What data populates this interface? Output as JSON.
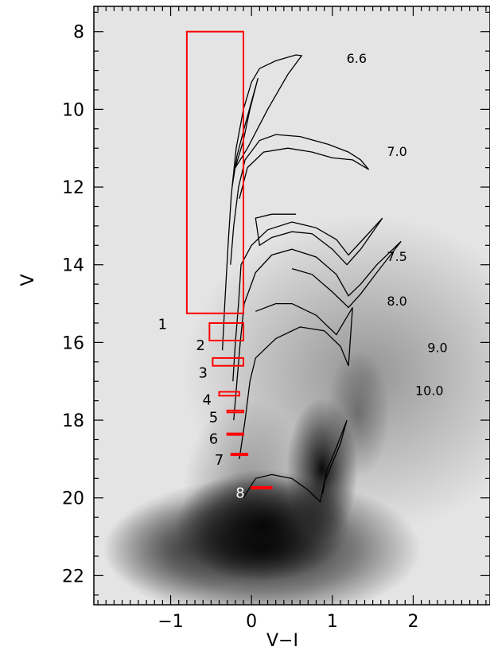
{
  "chart_data": {
    "type": "scatter",
    "xlabel": "V−I",
    "ylabel": "V",
    "xlim": [
      -1.95,
      2.95
    ],
    "ylim": [
      22.75,
      7.35
    ],
    "y_inverted": true,
    "xticks": [
      -1,
      0,
      1,
      2
    ],
    "xtick_labels": [
      "−1",
      "0",
      "1",
      "2"
    ],
    "yticks": [
      8,
      10,
      12,
      14,
      16,
      18,
      20,
      22
    ],
    "ytick_labels": [
      "8",
      "10",
      "12",
      "14",
      "16",
      "18",
      "20",
      "22"
    ],
    "background": "grayscale Hess density of stars",
    "colors": {
      "boxes": "#ff0000",
      "isochrones": "#000000"
    },
    "isochrones": [
      {
        "label": "6.6",
        "label_pos": [
          1.3,
          8.8
        ],
        "points": [
          [
            -0.36,
            16.2
          ],
          [
            -0.33,
            15.0
          ],
          [
            -0.29,
            13.5
          ],
          [
            -0.25,
            12.2
          ],
          [
            -0.19,
            11.0
          ],
          [
            -0.1,
            10.0
          ],
          [
            0.0,
            9.3
          ],
          [
            0.1,
            8.95
          ],
          [
            0.3,
            8.75
          ],
          [
            0.55,
            8.6
          ],
          [
            0.62,
            8.62
          ],
          [
            0.45,
            9.1
          ],
          [
            0.2,
            10.0
          ],
          [
            -0.05,
            11.0
          ],
          [
            -0.2,
            11.5
          ],
          [
            -0.1,
            10.8
          ],
          [
            -0.02,
            10.0
          ],
          [
            0.08,
            9.2
          ],
          [
            -0.08,
            10.4
          ],
          [
            -0.18,
            11.2
          ],
          [
            -0.24,
            12.0
          ]
        ]
      },
      {
        "label": "7.0",
        "label_pos": [
          1.8,
          11.2
        ],
        "points": [
          [
            -0.26,
            14.0
          ],
          [
            -0.22,
            13.0
          ],
          [
            -0.16,
            12.0
          ],
          [
            -0.08,
            11.3
          ],
          [
            0.1,
            10.8
          ],
          [
            0.3,
            10.65
          ],
          [
            0.6,
            10.7
          ],
          [
            0.95,
            10.9
          ],
          [
            1.2,
            11.1
          ],
          [
            1.35,
            11.3
          ],
          [
            1.45,
            11.55
          ],
          [
            1.25,
            11.3
          ],
          [
            1.0,
            11.25
          ],
          [
            0.75,
            11.1
          ],
          [
            0.45,
            11.0
          ],
          [
            0.15,
            11.1
          ],
          [
            -0.05,
            11.5
          ],
          [
            -0.15,
            12.3
          ]
        ]
      },
      {
        "label": "7.5",
        "label_pos": [
          1.8,
          13.9
        ],
        "points": [
          [
            -0.23,
            17.0
          ],
          [
            -0.2,
            16.0
          ],
          [
            -0.16,
            15.0
          ],
          [
            -0.13,
            14.0
          ],
          [
            0.0,
            13.5
          ],
          [
            0.2,
            13.1
          ],
          [
            0.5,
            12.9
          ],
          [
            0.8,
            13.05
          ],
          [
            1.05,
            13.35
          ],
          [
            1.2,
            13.75
          ],
          [
            1.4,
            13.3
          ],
          [
            1.62,
            12.8
          ],
          [
            1.35,
            13.6
          ],
          [
            1.18,
            14.0
          ],
          [
            1.0,
            13.6
          ],
          [
            0.75,
            13.2
          ],
          [
            0.5,
            13.15
          ],
          [
            0.25,
            13.3
          ],
          [
            0.1,
            13.5
          ],
          [
            0.05,
            12.8
          ],
          [
            0.25,
            12.7
          ],
          [
            0.55,
            12.7
          ]
        ]
      },
      {
        "label": "8.0",
        "label_pos": [
          1.8,
          15.05
        ],
        "points": [
          [
            -0.22,
            18.0
          ],
          [
            -0.18,
            17.0
          ],
          [
            -0.14,
            16.0
          ],
          [
            -0.09,
            15.0
          ],
          [
            0.05,
            14.2
          ],
          [
            0.25,
            13.75
          ],
          [
            0.5,
            13.6
          ],
          [
            0.8,
            13.8
          ],
          [
            1.05,
            14.25
          ],
          [
            1.2,
            14.8
          ],
          [
            1.35,
            14.5
          ],
          [
            1.55,
            14.0
          ],
          [
            1.85,
            13.4
          ],
          [
            1.55,
            14.2
          ],
          [
            1.35,
            14.75
          ],
          [
            1.2,
            15.1
          ],
          [
            1.0,
            14.7
          ],
          [
            0.75,
            14.25
          ],
          [
            0.5,
            14.1
          ]
        ]
      },
      {
        "label": "9.0",
        "label_pos": [
          2.3,
          16.25
        ],
        "points": [
          [
            -0.15,
            19.0
          ],
          [
            -0.08,
            18.0
          ],
          [
            -0.02,
            17.0
          ],
          [
            0.05,
            16.4
          ],
          [
            0.3,
            15.9
          ],
          [
            0.6,
            15.6
          ],
          [
            0.9,
            15.7
          ],
          [
            1.1,
            16.1
          ],
          [
            1.2,
            16.6
          ],
          [
            1.25,
            15.1
          ],
          [
            1.05,
            15.8
          ],
          [
            0.8,
            15.3
          ],
          [
            0.5,
            15.0
          ],
          [
            0.3,
            15.0
          ],
          [
            0.05,
            15.2
          ]
        ]
      },
      {
        "label": "10.0",
        "label_pos": [
          2.2,
          17.35
        ],
        "points": [
          [
            -0.1,
            20.0
          ],
          [
            0.05,
            19.5
          ],
          [
            0.25,
            19.4
          ],
          [
            0.5,
            19.5
          ],
          [
            0.7,
            19.8
          ],
          [
            0.85,
            20.1
          ],
          [
            0.9,
            19.6
          ],
          [
            1.0,
            19.1
          ],
          [
            1.1,
            18.6
          ],
          [
            1.18,
            18.0
          ],
          [
            1.05,
            18.7
          ],
          [
            0.93,
            19.3
          ],
          [
            0.88,
            19.9
          ]
        ]
      }
    ],
    "boxes": [
      {
        "label": "1",
        "x0": -0.8,
        "x1": -0.1,
        "y0": 8.0,
        "y1": 15.25,
        "label_pos": [
          -1.1,
          15.65
        ]
      },
      {
        "label": "2",
        "x0": -0.52,
        "x1": -0.1,
        "y0": 15.5,
        "y1": 15.95,
        "label_pos": [
          -0.63,
          16.2
        ]
      },
      {
        "label": "3",
        "x0": -0.48,
        "x1": -0.1,
        "y0": 16.4,
        "y1": 16.6,
        "label_pos": [
          -0.6,
          16.9
        ]
      },
      {
        "label": "4",
        "x0": -0.4,
        "x1": -0.15,
        "y0": 17.27,
        "y1": 17.37,
        "label_pos": [
          -0.55,
          17.6
        ]
      },
      {
        "label": "5",
        "x0": -0.3,
        "x1": -0.1,
        "y0": 17.75,
        "y1": 17.8,
        "label_pos": [
          -0.47,
          18.05
        ]
      },
      {
        "label": "6",
        "x0": -0.3,
        "x1": -0.1,
        "y0": 18.34,
        "y1": 18.38,
        "label_pos": [
          -0.47,
          18.6
        ]
      },
      {
        "label": "7",
        "x0": -0.25,
        "x1": -0.05,
        "y0": 18.86,
        "y1": 18.9,
        "label_pos": [
          -0.4,
          19.15
        ]
      },
      {
        "label": "8",
        "x0": 0.0,
        "x1": 0.25,
        "y0": 19.72,
        "y1": 19.76,
        "label_pos": [
          -0.14,
          20.0
        ],
        "label_color": "white"
      }
    ]
  }
}
